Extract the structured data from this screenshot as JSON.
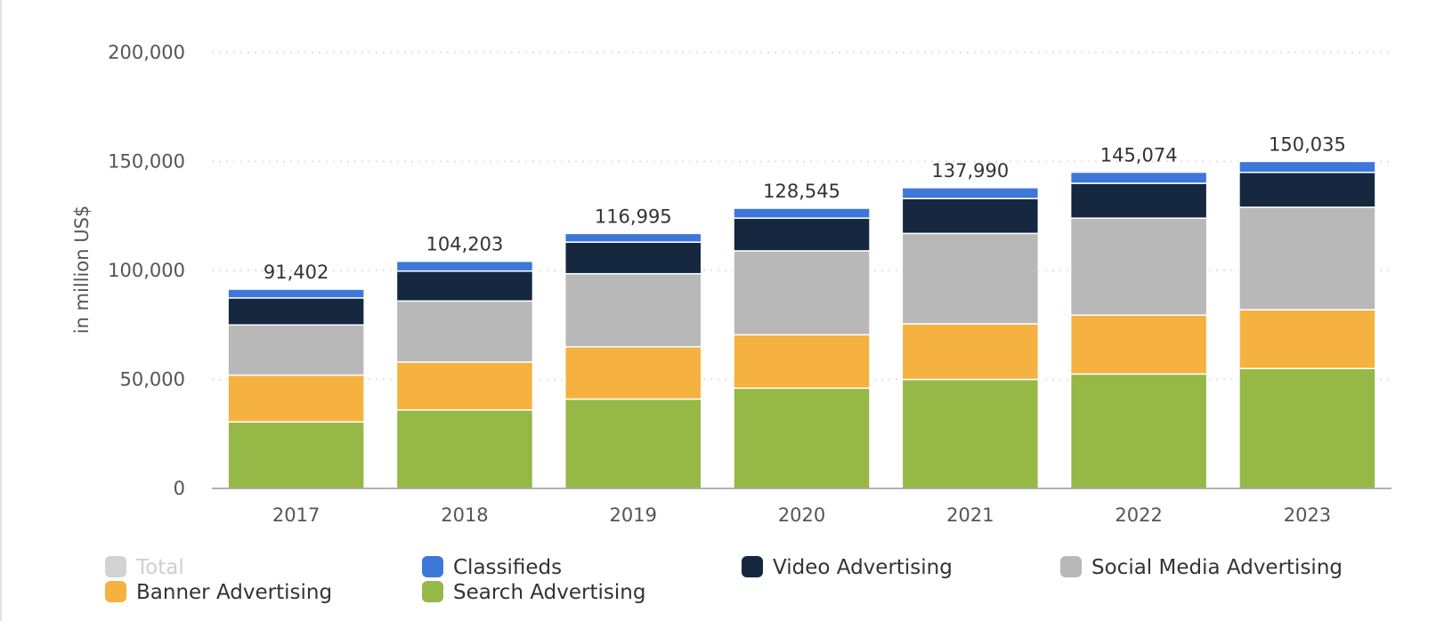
{
  "chart_data": {
    "type": "bar",
    "stacked": true,
    "ylabel": "in million US$",
    "ylim": [
      0,
      200000
    ],
    "yticks": [
      0,
      50000,
      100000,
      150000,
      200000
    ],
    "ytick_labels": [
      "0",
      "50,000",
      "100,000",
      "150,000",
      "200,000"
    ],
    "grid": true,
    "categories": [
      "2017",
      "2018",
      "2019",
      "2020",
      "2021",
      "2022",
      "2023"
    ],
    "totals": [
      91402,
      104203,
      116995,
      128545,
      137990,
      145074,
      150035
    ],
    "total_labels": [
      "91,402",
      "104,203",
      "116,995",
      "128,545",
      "137,990",
      "145,074",
      "150,035"
    ],
    "series": [
      {
        "name": "Search Advertising",
        "color": "#95b846",
        "values": [
          30500,
          36000,
          41000,
          46000,
          50000,
          52500,
          55000
        ]
      },
      {
        "name": "Banner Advertising",
        "color": "#f5b240",
        "values": [
          21500,
          22000,
          24000,
          24500,
          25500,
          27000,
          27000
        ]
      },
      {
        "name": "Social Media Advertising",
        "color": "#b8b8b8",
        "values": [
          23000,
          28000,
          33500,
          38500,
          41500,
          44500,
          47000
        ]
      },
      {
        "name": "Video Advertising",
        "color": "#162840",
        "values": [
          12400,
          13700,
          14500,
          15000,
          16000,
          16000,
          16000
        ]
      },
      {
        "name": "Classifieds",
        "color": "#3d78d8",
        "values": [
          4002,
          4503,
          3995,
          4545,
          4990,
          5074,
          5035
        ]
      }
    ],
    "legend": {
      "placement": "bottom",
      "items": [
        {
          "label": "Total",
          "color": "#d2d2d2",
          "muted": true
        },
        {
          "label": "Classifieds",
          "color": "#3d78d8",
          "muted": false
        },
        {
          "label": "Video Advertising",
          "color": "#162840",
          "muted": false
        },
        {
          "label": "Social Media Advertising",
          "color": "#b8b8b8",
          "muted": false
        },
        {
          "label": "Banner Advertising",
          "color": "#f5b240",
          "muted": false
        },
        {
          "label": "Search Advertising",
          "color": "#95b846",
          "muted": false
        }
      ]
    }
  }
}
